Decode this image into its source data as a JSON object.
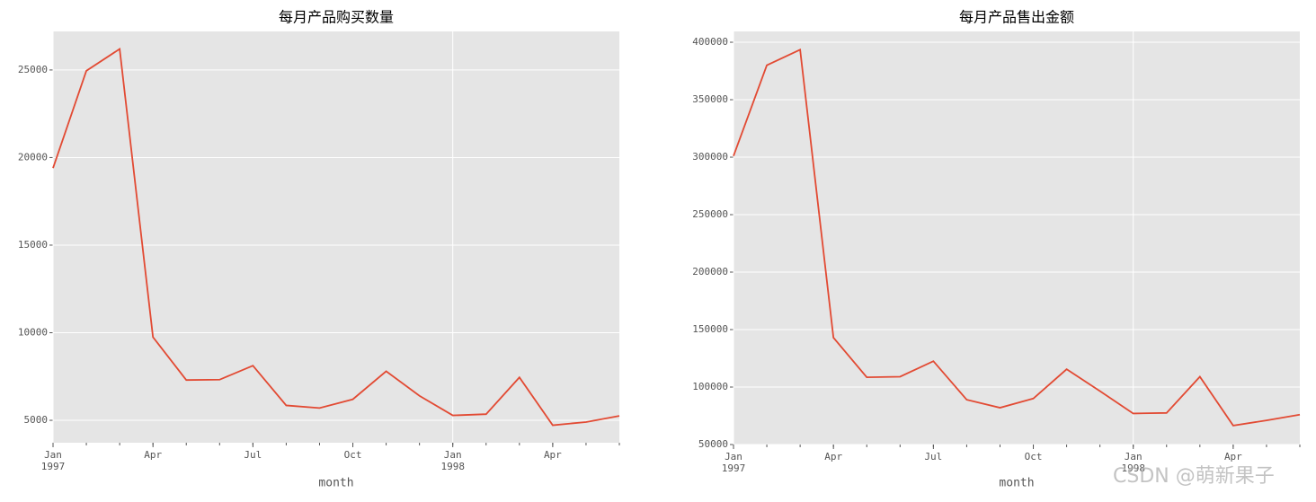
{
  "chart_data": [
    {
      "type": "line",
      "title": "每月产品购买数量",
      "x_label": "month",
      "x": [
        "1997-01",
        "1997-02",
        "1997-03",
        "1997-04",
        "1997-05",
        "1997-06",
        "1997-07",
        "1997-08",
        "1997-09",
        "1997-10",
        "1997-11",
        "1997-12",
        "1998-01",
        "1998-02",
        "1998-03",
        "1998-04",
        "1998-05",
        "1998-06"
      ],
      "series": [
        {
          "color": "#e24a33",
          "values": [
            19400,
            24950,
            26200,
            9750,
            7300,
            7320,
            8120,
            5850,
            5700,
            6200,
            7800,
            6400,
            5280,
            5350,
            7450,
            4720,
            4900,
            5250
          ]
        }
      ],
      "ylim": [
        3720,
        27200
      ],
      "yticks": [
        5000,
        10000,
        15000,
        20000,
        25000
      ],
      "xticks": [
        {
          "value": "1997-01",
          "label": [
            "Jan",
            "1997"
          ]
        },
        {
          "value": "1997-04",
          "label": [
            "Apr"
          ]
        },
        {
          "value": "1997-07",
          "label": [
            "Jul"
          ]
        },
        {
          "value": "1997-10",
          "label": [
            "Oct"
          ]
        },
        {
          "value": "1998-01",
          "label": [
            "Jan",
            "1998"
          ]
        },
        {
          "value": "1998-04",
          "label": [
            "Apr"
          ]
        }
      ],
      "grid": true
    },
    {
      "type": "line",
      "title": "每月产品售出金额",
      "x_label": "month",
      "x": [
        "1997-01",
        "1997-02",
        "1997-03",
        "1997-04",
        "1997-05",
        "1997-06",
        "1997-07",
        "1997-08",
        "1997-09",
        "1997-10",
        "1997-11",
        "1997-12",
        "1998-01",
        "1998-02",
        "1998-03",
        "1998-04",
        "1998-05",
        "1998-06"
      ],
      "series": [
        {
          "color": "#e24a33",
          "values": [
            301000,
            380000,
            393500,
            143000,
            108500,
            109000,
            122500,
            89000,
            82000,
            90000,
            115500,
            96500,
            77000,
            77500,
            109000,
            66500,
            71000,
            76000
          ]
        }
      ],
      "ylim": [
        50000,
        409400
      ],
      "yticks": [
        50000,
        100000,
        150000,
        200000,
        250000,
        300000,
        350000,
        400000
      ],
      "xticks": [
        {
          "value": "1997-01",
          "label": [
            "Jan",
            "1997"
          ]
        },
        {
          "value": "1997-04",
          "label": [
            "Apr"
          ]
        },
        {
          "value": "1997-07",
          "label": [
            "Jul"
          ]
        },
        {
          "value": "1997-10",
          "label": [
            "Oct"
          ]
        },
        {
          "value": "1998-01",
          "label": [
            "Jan",
            "1998"
          ]
        },
        {
          "value": "1998-04",
          "label": [
            "Apr"
          ]
        }
      ],
      "grid": true
    }
  ],
  "watermark": "CSDN @萌新果子"
}
